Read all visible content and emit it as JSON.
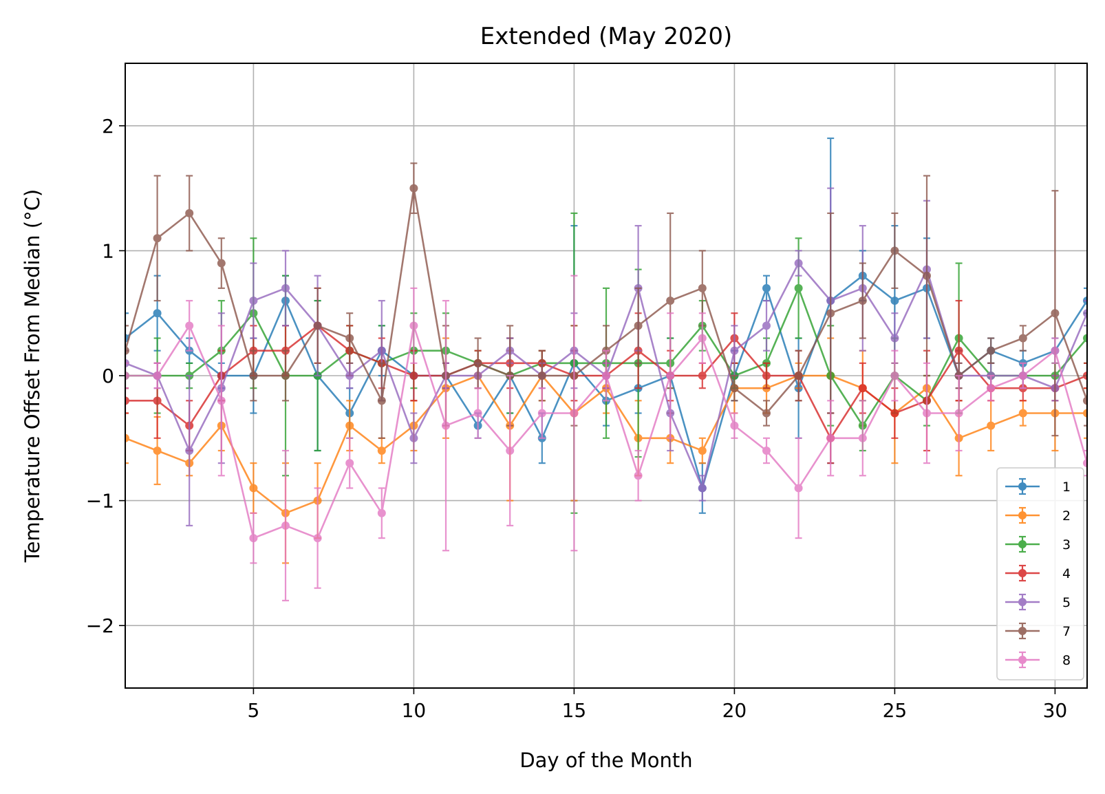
{
  "chart_data": {
    "type": "line",
    "title": "Extended (May 2020)",
    "xlabel": "Day of the Month",
    "ylabel": "Temperature Offset From Median (°C)",
    "xlim": [
      1,
      31
    ],
    "ylim": [
      -2.5,
      2.5
    ],
    "xticks": [
      5,
      10,
      15,
      20,
      25,
      30
    ],
    "yticks": [
      -2,
      -1,
      0,
      1,
      2
    ],
    "ytick_labels": [
      "−2",
      "−1",
      "0",
      "1",
      "2"
    ],
    "grid": true,
    "legend_position": "lower-right",
    "x": [
      1,
      2,
      3,
      4,
      5,
      6,
      7,
      8,
      9,
      10,
      11,
      12,
      13,
      14,
      15,
      16,
      17,
      18,
      19,
      20,
      21,
      22,
      23,
      24,
      25,
      26,
      27,
      28,
      29,
      30,
      31
    ],
    "series": [
      {
        "name": "1",
        "color": "#1f77b4",
        "values": [
          0.3,
          0.5,
          0.2,
          0,
          0,
          0.6,
          0,
          -0.3,
          0.2,
          0,
          0,
          -0.4,
          0,
          -0.5,
          0.1,
          -0.2,
          -0.1,
          0,
          -0.9,
          0,
          0.7,
          -0.1,
          0.6,
          0.8,
          0.6,
          0.7,
          0,
          0.2,
          0.1,
          0.2,
          0.6
        ],
        "errors": [
          0.2,
          0.3,
          0.1,
          0.1,
          0.3,
          0.2,
          0.6,
          0.2,
          0.2,
          0.2,
          0.1,
          0.1,
          0.3,
          0.2,
          1.1,
          0.2,
          0.2,
          0.3,
          0.2,
          0.2,
          0.1,
          0.4,
          1.3,
          0.2,
          0.6,
          0.4,
          0.2,
          0.1,
          0.1,
          0.1,
          0.1
        ]
      },
      {
        "name": "2",
        "color": "#ff7f0e",
        "values": [
          -0.5,
          -0.6,
          -0.7,
          -0.4,
          -0.9,
          -1.1,
          -1.0,
          -0.4,
          -0.6,
          -0.4,
          -0.1,
          0,
          -0.4,
          0,
          -0.3,
          -0.1,
          -0.5,
          -0.5,
          -0.6,
          -0.1,
          -0.1,
          0,
          0,
          -0.1,
          -0.3,
          -0.1,
          -0.5,
          -0.4,
          -0.3,
          -0.3,
          -0.3
        ],
        "errors": [
          0.2,
          0.27,
          0.1,
          0.2,
          0.2,
          0.4,
          0.3,
          0.2,
          0.1,
          0.2,
          0.4,
          0.1,
          0.6,
          0.2,
          0.7,
          0.2,
          0.3,
          0.2,
          0.1,
          0.2,
          0.2,
          0.1,
          0.3,
          0.3,
          0.4,
          0.1,
          0.3,
          0.2,
          0.1,
          0.3,
          0.2
        ]
      },
      {
        "name": "3",
        "color": "#2ca02c",
        "values": [
          0,
          0,
          0,
          0.2,
          0.5,
          0,
          0,
          0.2,
          0.1,
          0.2,
          0.2,
          0.1,
          0,
          0.1,
          0.1,
          0.1,
          0.1,
          0.1,
          0.4,
          0,
          0.1,
          0.7,
          0,
          -0.4,
          0,
          -0.2,
          0.3,
          0,
          0,
          0,
          0.3
        ],
        "errors": [
          0.1,
          0.3,
          0.1,
          0.4,
          0.6,
          0.8,
          0.6,
          0.2,
          0.3,
          0.3,
          0.3,
          0.1,
          0.3,
          0.1,
          1.2,
          0.6,
          0.75,
          0.2,
          0.2,
          0.1,
          0.2,
          0.4,
          0.4,
          0.2,
          0.3,
          0.2,
          0.6,
          0.1,
          0.1,
          0.1,
          0.2
        ]
      },
      {
        "name": "4",
        "color": "#d62728",
        "values": [
          -0.2,
          -0.2,
          -0.4,
          0,
          0.2,
          0.2,
          0.4,
          0.2,
          0.1,
          0,
          0,
          0.1,
          0.1,
          0.1,
          0,
          0,
          0.2,
          0,
          0,
          0.3,
          0,
          0,
          -0.5,
          -0.1,
          -0.3,
          -0.2,
          0.2,
          -0.1,
          -0.1,
          -0.1,
          0
        ],
        "errors": [
          0.1,
          0.3,
          0.2,
          0.2,
          0.2,
          0.2,
          0.3,
          0.2,
          0.2,
          0.2,
          0.1,
          0.1,
          0.2,
          0.1,
          0.2,
          0.1,
          0.3,
          0.2,
          0.1,
          0.2,
          0.1,
          0.2,
          0.2,
          0.2,
          0.2,
          0.4,
          0.4,
          0.1,
          0.1,
          0.1,
          0.1
        ]
      },
      {
        "name": "5",
        "color": "#9467bd",
        "values": [
          0.1,
          0,
          -0.6,
          -0.1,
          0.6,
          0.7,
          0.4,
          0,
          0.2,
          -0.5,
          0,
          0,
          0.2,
          0,
          0.2,
          0,
          0.7,
          -0.3,
          -0.9,
          0.2,
          0.4,
          0.9,
          0.6,
          0.7,
          0.3,
          0.85,
          0,
          0,
          0,
          -0.1,
          0.5
        ],
        "errors": [
          0.1,
          0.1,
          0.6,
          0.6,
          0.3,
          0.3,
          0.4,
          0.1,
          0.4,
          0.2,
          0.1,
          0.1,
          0.1,
          0.1,
          0.3,
          0.1,
          0.5,
          0.3,
          0.1,
          0.2,
          0.2,
          0.1,
          0.9,
          0.5,
          0.2,
          0.55,
          0.1,
          0.1,
          0.1,
          0.1,
          0.1
        ]
      },
      {
        "name": "7",
        "color": "#8c564b",
        "values": [
          0.2,
          1.1,
          1.3,
          0.9,
          0,
          0,
          0.4,
          0.3,
          -0.2,
          1.5,
          0,
          0.1,
          0,
          0,
          0,
          0.2,
          0.4,
          0.6,
          0.7,
          -0.1,
          -0.3,
          0,
          0.5,
          0.6,
          1.0,
          0.8,
          0,
          0.2,
          0.3,
          0.5,
          -0.2
        ],
        "errors": [
          0.2,
          0.5,
          0.3,
          0.2,
          0.2,
          0.2,
          0.3,
          0.2,
          0.3,
          0.2,
          0.4,
          0.2,
          0.4,
          0.2,
          0.4,
          0.2,
          0.3,
          0.7,
          0.3,
          0.1,
          0.1,
          0.2,
          0.8,
          0.3,
          0.3,
          0.8,
          0.1,
          0.1,
          0.1,
          0.98,
          0.2
        ]
      },
      {
        "name": "8",
        "color": "#e377c2",
        "values": [
          0,
          0,
          0.4,
          -0.2,
          -1.3,
          -1.2,
          -1.3,
          -0.7,
          -1.1,
          0.4,
          -0.4,
          -0.3,
          -0.6,
          -0.3,
          -0.3,
          0,
          -0.8,
          0,
          0.3,
          -0.4,
          -0.6,
          -0.9,
          -0.5,
          -0.5,
          0,
          -0.3,
          -0.3,
          -0.1,
          0,
          0.2,
          -0.7
        ],
        "errors": [
          0.1,
          0.1,
          0.2,
          0.6,
          0.2,
          0.6,
          0.4,
          0.2,
          0.2,
          0.3,
          1.0,
          0.2,
          0.6,
          0.2,
          1.1,
          0.2,
          0.2,
          0.5,
          0.2,
          0.1,
          0.1,
          0.4,
          0.3,
          0.3,
          0.2,
          0.4,
          0.3,
          0.1,
          0.1,
          0.1,
          0.1
        ]
      }
    ]
  }
}
